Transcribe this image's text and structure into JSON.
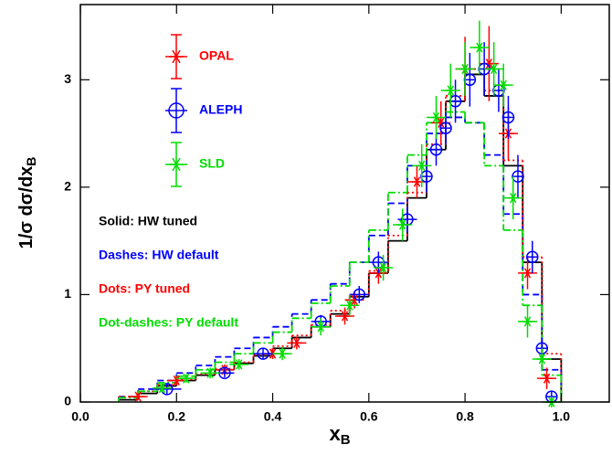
{
  "chart_data": {
    "type": "scatter",
    "x_label": "x",
    "x_label_sub": "B",
    "y_label": "1/σ  dσ/dx",
    "y_label_sub": "B",
    "xlim": [
      0,
      1.1
    ],
    "ylim": [
      0,
      3.7
    ],
    "xticks": [
      {
        "value": 0,
        "label": "0.0"
      },
      {
        "value": 0.2,
        "label": "0.2"
      },
      {
        "value": 0.4,
        "label": "0.4"
      },
      {
        "value": 0.6,
        "label": "0.6"
      },
      {
        "value": 0.8,
        "label": "0.8"
      },
      {
        "value": 1,
        "label": "1.0"
      }
    ],
    "yticks": [
      0,
      1,
      2,
      3
    ],
    "legend": "upper left",
    "series": [
      {
        "name": "OPAL",
        "color": "#ff0000",
        "marker": "star",
        "x": [
          0.12,
          0.2,
          0.3,
          0.4,
          0.45,
          0.55,
          0.57,
          0.62,
          0.7,
          0.75,
          0.8,
          0.85,
          0.89,
          0.93,
          0.97
        ],
        "values": [
          0.05,
          0.2,
          0.3,
          0.45,
          0.55,
          0.8,
          0.95,
          1.2,
          2.05,
          2.6,
          3.1,
          3.15,
          2.5,
          1.2,
          0.22
        ],
        "xerr": [
          0.02,
          0.02,
          0.02,
          0.02,
          0.02,
          0.02,
          0.02,
          0.02,
          0.02,
          0.02,
          0.02,
          0.02,
          0.02,
          0.02,
          0.02
        ],
        "yerr": [
          0.03,
          0.04,
          0.05,
          0.05,
          0.06,
          0.08,
          0.08,
          0.1,
          0.15,
          0.2,
          0.3,
          0.35,
          0.25,
          0.15,
          0.1
        ]
      },
      {
        "name": "ALEPH",
        "color": "#0000ff",
        "marker": "circle",
        "x": [
          0.18,
          0.3,
          0.38,
          0.5,
          0.58,
          0.62,
          0.68,
          0.72,
          0.74,
          0.76,
          0.78,
          0.81,
          0.84,
          0.87,
          0.89,
          0.91,
          0.94,
          0.96,
          0.98
        ],
        "values": [
          0.12,
          0.27,
          0.45,
          0.75,
          1.0,
          1.3,
          1.7,
          2.1,
          2.35,
          2.55,
          2.8,
          3.0,
          3.1,
          2.9,
          2.65,
          2.1,
          1.35,
          0.5,
          0.05
        ],
        "xerr": [
          0.03,
          0.02,
          0.02,
          0.02,
          0.02,
          0.02,
          0.02,
          0.01,
          0.01,
          0.01,
          0.01,
          0.01,
          0.01,
          0.01,
          0.01,
          0.01,
          0.01,
          0.01,
          0.01
        ],
        "yerr": [
          0.05,
          0.04,
          0.05,
          0.06,
          0.08,
          0.1,
          0.12,
          0.15,
          0.15,
          0.15,
          0.2,
          0.25,
          0.25,
          0.2,
          0.2,
          0.2,
          0.15,
          0.1,
          0.05
        ]
      },
      {
        "name": "SLD",
        "color": "#00dd00",
        "marker": "star",
        "x": [
          0.17,
          0.22,
          0.27,
          0.33,
          0.42,
          0.5,
          0.56,
          0.63,
          0.67,
          0.71,
          0.74,
          0.77,
          0.8,
          0.83,
          0.86,
          0.88,
          0.9,
          0.93,
          0.96,
          0.98
        ],
        "values": [
          0.13,
          0.22,
          0.27,
          0.35,
          0.45,
          0.7,
          0.9,
          1.25,
          1.65,
          2.2,
          2.65,
          2.9,
          3.1,
          3.3,
          3.1,
          2.95,
          1.9,
          0.75,
          0.4,
          0.0
        ],
        "xerr": [
          0.02,
          0.02,
          0.02,
          0.02,
          0.02,
          0.02,
          0.02,
          0.02,
          0.02,
          0.02,
          0.02,
          0.02,
          0.02,
          0.02,
          0.02,
          0.02,
          0.02,
          0.02,
          0.02,
          0.02
        ],
        "yerr": [
          0.04,
          0.04,
          0.05,
          0.05,
          0.06,
          0.08,
          0.1,
          0.12,
          0.15,
          0.2,
          0.2,
          0.25,
          0.25,
          0.25,
          0.25,
          0.2,
          0.2,
          0.15,
          0.1,
          0.05
        ]
      }
    ],
    "curves": {
      "bins": [
        0.08,
        0.12,
        0.16,
        0.2,
        0.24,
        0.28,
        0.32,
        0.36,
        0.4,
        0.44,
        0.48,
        0.52,
        0.56,
        0.6,
        0.64,
        0.68,
        0.72,
        0.76,
        0.8,
        0.84,
        0.88,
        0.92,
        0.96,
        1.0
      ],
      "series": [
        {
          "name": "Solid: HW tuned",
          "color": "#000000",
          "dash": "none",
          "values": [
            0.02,
            0.08,
            0.15,
            0.2,
            0.25,
            0.3,
            0.36,
            0.43,
            0.5,
            0.6,
            0.7,
            0.82,
            0.98,
            1.2,
            1.5,
            1.9,
            2.35,
            2.8,
            3.05,
            2.85,
            2.2,
            1.3,
            0.4
          ]
        },
        {
          "name": "Dashes: HW default",
          "color": "#0000ff",
          "dash": "7,4",
          "values": [
            0.05,
            0.12,
            0.2,
            0.27,
            0.34,
            0.42,
            0.5,
            0.6,
            0.7,
            0.82,
            0.95,
            1.1,
            1.3,
            1.55,
            1.85,
            2.2,
            2.5,
            2.65,
            2.6,
            2.3,
            1.75,
            1.0,
            0.3
          ]
        },
        {
          "name": "Dots: PY tuned",
          "color": "#ff0000",
          "dash": "2,3",
          "values": [
            0.05,
            0.1,
            0.16,
            0.21,
            0.26,
            0.31,
            0.37,
            0.44,
            0.52,
            0.62,
            0.72,
            0.85,
            1.0,
            1.22,
            1.55,
            1.95,
            2.4,
            2.85,
            3.1,
            2.9,
            2.25,
            1.35,
            0.45
          ]
        },
        {
          "name": "Dot-dashes: PY default",
          "color": "#00dd00",
          "dash": "8,3,2,3",
          "values": [
            0.04,
            0.1,
            0.18,
            0.24,
            0.3,
            0.37,
            0.45,
            0.55,
            0.65,
            0.78,
            0.92,
            1.08,
            1.3,
            1.6,
            1.95,
            2.3,
            2.6,
            2.7,
            2.6,
            2.2,
            1.6,
            0.9,
            0.25
          ]
        }
      ]
    }
  }
}
